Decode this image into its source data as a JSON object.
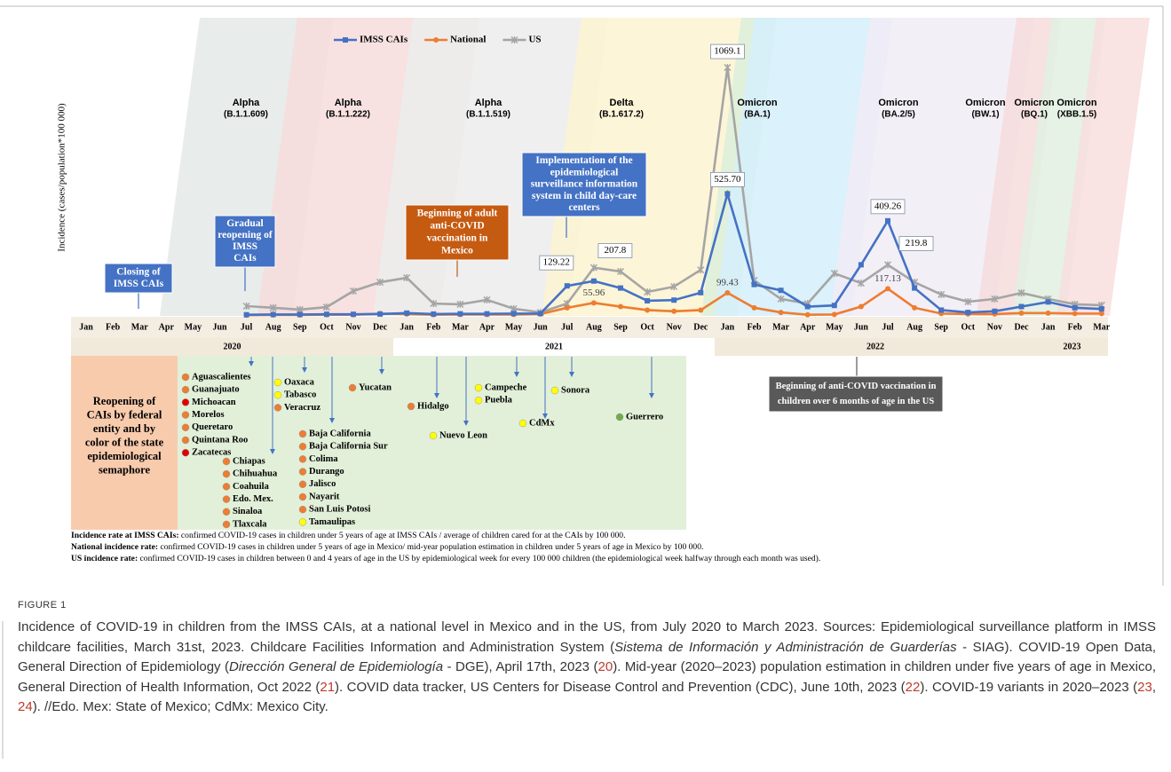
{
  "chart_data": {
    "type": "line",
    "ylabel": "Incidence (cases/population*100 000)",
    "categories": [
      "Jan",
      "Feb",
      "Mar",
      "Apr",
      "May",
      "Jun",
      "Jul",
      "Aug",
      "Sep",
      "Oct",
      "Nov",
      "Dec",
      "Jan",
      "Feb",
      "Mar",
      "Apr",
      "May",
      "Jun",
      "Jul",
      "Aug",
      "Sep",
      "Oct",
      "Nov",
      "Dec",
      "Jan",
      "Feb",
      "Mar",
      "Apr",
      "May",
      "Jun",
      "Jul",
      "Aug",
      "Sep",
      "Oct",
      "Nov",
      "Dec",
      "Jan",
      "Feb",
      "Mar"
    ],
    "years": [
      "2020",
      "2021",
      "2022",
      "2023"
    ],
    "ylim": [
      0,
      1100
    ],
    "series": [
      {
        "name": "IMSS CAIs",
        "color": "#4472c4",
        "marker": "square",
        "values": [
          null,
          null,
          null,
          null,
          null,
          null,
          5,
          6,
          6,
          7,
          7,
          8,
          12,
          8,
          9,
          9,
          10,
          10,
          129.22,
          150,
          120,
          65,
          68,
          100,
          525.7,
          135,
          110,
          40,
          45,
          220,
          409.26,
          120,
          25,
          15,
          20,
          40,
          60,
          35,
          30
        ],
        "value_labels": [
          null,
          null,
          null,
          null,
          null,
          null,
          null,
          null,
          null,
          null,
          null,
          null,
          null,
          null,
          null,
          null,
          null,
          null,
          "129.22",
          null,
          null,
          null,
          null,
          null,
          "525.70",
          null,
          null,
          null,
          null,
          null,
          "409.26",
          null,
          null,
          null,
          null,
          null,
          null,
          null,
          null
        ]
      },
      {
        "name": "National",
        "color": "#ed7d31",
        "marker": "circle",
        "values": [
          null,
          null,
          null,
          null,
          null,
          null,
          3,
          4,
          4,
          5,
          5,
          10,
          8,
          5,
          6,
          6,
          6,
          8,
          35,
          55.96,
          40,
          25,
          20,
          25,
          99.43,
          35,
          15,
          5,
          6,
          40,
          117.13,
          35,
          10,
          8,
          8,
          12,
          12,
          10,
          10
        ],
        "value_labels": [
          null,
          null,
          null,
          null,
          null,
          null,
          null,
          null,
          null,
          null,
          null,
          null,
          null,
          null,
          null,
          null,
          null,
          null,
          null,
          "55.96",
          null,
          null,
          null,
          null,
          "99.43",
          null,
          null,
          null,
          null,
          null,
          "117.13",
          null,
          null,
          null,
          null,
          null,
          null,
          null,
          null
        ]
      },
      {
        "name": "US",
        "color": "#a5a5a5",
        "marker": "star",
        "values": [
          null,
          null,
          null,
          null,
          null,
          null,
          42,
          35,
          27,
          38,
          107,
          145,
          164,
          53,
          50,
          69,
          31,
          15,
          53,
          207.8,
          191,
          103,
          126,
          198,
          1069.1,
          153,
          73,
          53,
          183,
          141,
          219.8,
          145,
          92,
          61,
          73,
          99,
          73,
          50,
          46
        ],
        "value_labels": [
          null,
          null,
          null,
          null,
          null,
          null,
          null,
          null,
          null,
          null,
          null,
          null,
          null,
          null,
          null,
          null,
          null,
          null,
          null,
          "207.8",
          null,
          null,
          null,
          null,
          "1069.1",
          null,
          null,
          null,
          null,
          null,
          "219.8",
          null,
          null,
          null,
          null,
          null,
          null,
          null,
          null
        ]
      }
    ],
    "variants": [
      {
        "name": "Alpha",
        "lineage": "(B.1.1.609)"
      },
      {
        "name": "Alpha",
        "lineage": "(B.1.1.222)"
      },
      {
        "name": "Alpha",
        "lineage": "(B.1.1.519)"
      },
      {
        "name": "Delta",
        "lineage": "(B.1.617.2)"
      },
      {
        "name": "Omicron",
        "lineage": "(BA.1)"
      },
      {
        "name": "Omicron",
        "lineage": "(BA.2/5)"
      },
      {
        "name": "Omicron",
        "lineage": "(BW.1)"
      },
      {
        "name": "Omicron",
        "lineage": "(BQ.1)"
      },
      {
        "name": "Omicron",
        "lineage": "(XBB.1.5)"
      }
    ],
    "annotations": [
      {
        "lines": [
          "Closing of",
          "IMSS CAIs"
        ]
      },
      {
        "lines": [
          "Gradual",
          "reopening of",
          "IMSS",
          "CAIs"
        ]
      },
      {
        "lines": [
          "Beginning of adult",
          "anti-COVID",
          "vaccination in",
          "Mexico"
        ]
      },
      {
        "lines": [
          "Implementation of the",
          "epidemiological",
          "surveillance information",
          "system in child day-care",
          "centers"
        ]
      },
      {
        "lines": [
          "Beginning of anti-COVID vaccination in",
          "children over 6 months of age in the US"
        ]
      }
    ],
    "reopening_title": [
      "Reopening of",
      "CAIs by federal",
      "entity and by",
      "color of the state",
      "epidemiological",
      "semaphore"
    ],
    "reopenings": [
      {
        "states": [
          {
            "name": "Aguascalientes",
            "color": "#ed7d31"
          },
          {
            "name": "Guanajuato",
            "color": "#ed7d31"
          },
          {
            "name": "Michoacan",
            "color": "#e00000"
          },
          {
            "name": "Morelos",
            "color": "#ed7d31"
          },
          {
            "name": "Queretaro",
            "color": "#ed7d31"
          },
          {
            "name": "Quintana Roo",
            "color": "#ed7d31"
          },
          {
            "name": "Zacatecas",
            "color": "#e00000"
          }
        ]
      },
      {
        "states": [
          {
            "name": "Chiapas",
            "color": "#ed7d31"
          },
          {
            "name": "Chihuahua",
            "color": "#ed7d31"
          },
          {
            "name": "Coahuila",
            "color": "#ed7d31"
          },
          {
            "name": "Edo. Mex.",
            "color": "#ed7d31"
          },
          {
            "name": "Sinaloa",
            "color": "#ed7d31"
          },
          {
            "name": "Tlaxcala",
            "color": "#ed7d31"
          }
        ]
      },
      {
        "states": [
          {
            "name": "Oaxaca",
            "color": "#ffff00"
          },
          {
            "name": "Tabasco",
            "color": "#ffff00"
          },
          {
            "name": "Veracruz",
            "color": "#ed7d31"
          }
        ]
      },
      {
        "states": [
          {
            "name": "Baja California",
            "color": "#ed7d31"
          },
          {
            "name": "Baja California Sur",
            "color": "#ed7d31"
          },
          {
            "name": "Colima",
            "color": "#ed7d31"
          },
          {
            "name": "Durango",
            "color": "#ed7d31"
          },
          {
            "name": "Jalisco",
            "color": "#ed7d31"
          },
          {
            "name": "Nayarit",
            "color": "#ed7d31"
          },
          {
            "name": "San Luis Potosi",
            "color": "#ed7d31"
          },
          {
            "name": "Tamaulipas",
            "color": "#ffff00"
          }
        ]
      },
      {
        "states": [
          {
            "name": "Yucatan",
            "color": "#ed7d31"
          }
        ]
      },
      {
        "states": [
          {
            "name": "Hidalgo",
            "color": "#ed7d31"
          }
        ]
      },
      {
        "states": [
          {
            "name": "Nuevo Leon",
            "color": "#ffff00"
          }
        ]
      },
      {
        "states": [
          {
            "name": "Campeche",
            "color": "#ffff00"
          },
          {
            "name": "Puebla",
            "color": "#ffff00"
          }
        ]
      },
      {
        "states": [
          {
            "name": "CdMx",
            "color": "#ffff00"
          }
        ]
      },
      {
        "states": [
          {
            "name": "Sonora",
            "color": "#ffff00"
          }
        ]
      },
      {
        "states": [
          {
            "name": "Guerrero",
            "color": "#70ad47"
          }
        ]
      }
    ],
    "footnotes": [
      {
        "label": "Incidence rate at IMSS CAIs:",
        "text": " confirmed COVID-19 cases in children under 5 years of age at IMSS CAIs / average of children cared for at the CAIs by 100 000."
      },
      {
        "label": "National incidence rate:",
        "text": " confirmed COVID-19 cases in children under 5 years of age in Mexico/ mid-year population estimation in children under 5 years of age in Mexico by 100 000."
      },
      {
        "label": "US incidence rate:",
        "text": " confirmed COVID-19 cases in children between 0 and 4 years of age in the US by epidemiological week for every 100 000 children (the epidemiological week halfway through each month was used)."
      }
    ]
  },
  "figure": {
    "label": "FIGURE 1",
    "caption": [
      "Incidence of COVID-19 in children from the IMSS CAIs, at a national level in Mexico and in the US, from July 2020 to March 2023. Sources: Epidemiological surveillance platform in IMSS childcare facilities, March 31st, 2023. Childcare Facilities Information and Administration System (",
      "Sistema de Información y Administración de Guarderías",
      " - SIAG). COVID-19 Open Data, General Direction of Epidemiology (",
      "Dirección General de Epidemiología",
      " - DGE), April 17th, 2023 (",
      "20",
      "). Mid-year (2020–2023) population estimation in children under five years of age in Mexico, General Direction of Health Information, Oct 2022 (",
      "21",
      "). COVID data tracker, US Centers for Disease Control and Prevention (CDC), June 10th, 2023 (",
      "22",
      "). COVID-19 variants in 2020–2023 (",
      "23",
      ", ",
      "24",
      "). //Edo. Mex: State of Mexico; CdMx: Mexico City."
    ]
  }
}
